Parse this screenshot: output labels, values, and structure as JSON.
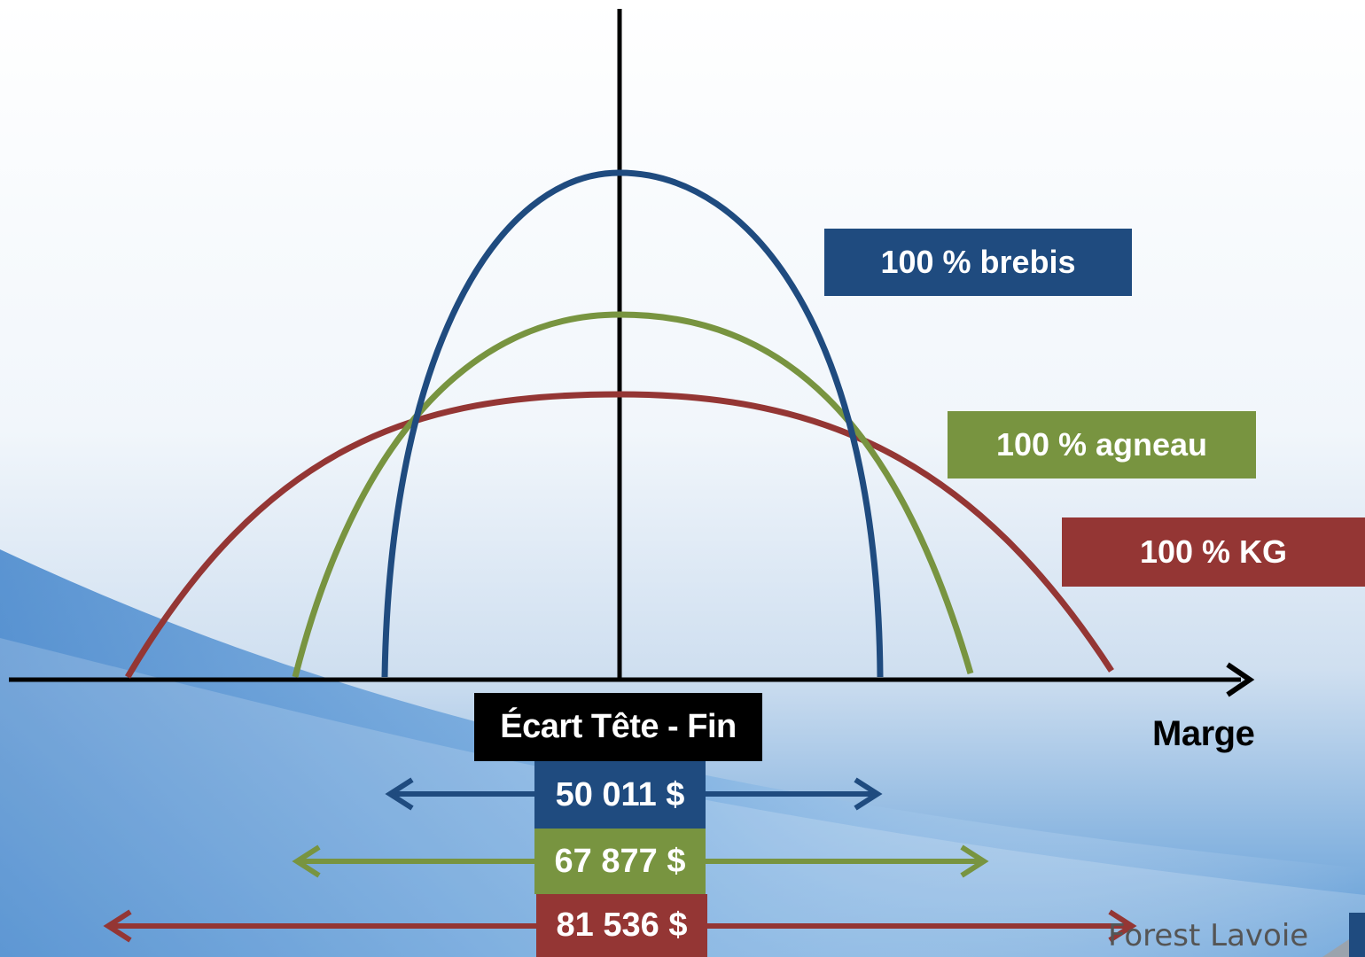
{
  "labels": {
    "brebis": "100 % brebis",
    "agneau": "100 % agneau",
    "kg": "100 % KG"
  },
  "axis_title": "Marge",
  "spread": {
    "title": "Écart Tête - Fin",
    "values": {
      "brebis": "50 011 $",
      "agneau": "67 877 $",
      "kg": "81 536 $"
    }
  },
  "logo_text": "Forest Lavoie",
  "colors": {
    "brebis": "#1f4b7f",
    "agneau": "#789440",
    "kg": "#943634",
    "axis": "#000000"
  },
  "icons": {
    "logo": "logo-mark-icon",
    "arrows": "double-headed-arrow-icon"
  }
}
